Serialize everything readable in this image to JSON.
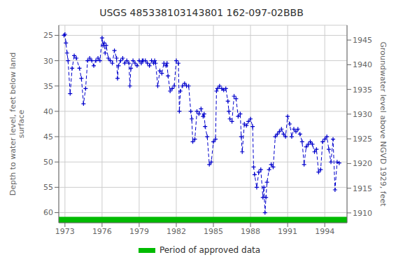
{
  "chart_data": {
    "type": "line",
    "title": "USGS 485338103143801 162-097-02BBB",
    "y_label": "Depth to water level, feet below land\nsurface",
    "y2_label": "Groundwater level above NGVD 1929, feet",
    "x": [
      1972.92,
      1973.0,
      1973.08,
      1973.17,
      1973.25,
      1973.42,
      1973.58,
      1973.75,
      1973.92,
      1974.17,
      1974.33,
      1974.5,
      1974.67,
      1974.83,
      1975.0,
      1975.17,
      1975.33,
      1975.5,
      1975.67,
      1975.83,
      1976.0,
      1976.08,
      1976.17,
      1976.25,
      1976.33,
      1976.5,
      1976.67,
      1976.83,
      1977.0,
      1977.17,
      1977.25,
      1977.33,
      1977.5,
      1977.67,
      1977.83,
      1978.0,
      1978.17,
      1978.25,
      1978.33,
      1978.5,
      1978.67,
      1978.83,
      1979.0,
      1979.17,
      1979.25,
      1979.33,
      1979.5,
      1979.67,
      1979.83,
      1980.0,
      1980.17,
      1980.25,
      1980.33,
      1980.5,
      1980.67,
      1980.83,
      1981.0,
      1981.17,
      1981.25,
      1981.33,
      1981.5,
      1981.67,
      1981.83,
      1982.0,
      1982.17,
      1982.25,
      1982.33,
      1982.5,
      1982.67,
      1982.83,
      1983.0,
      1983.17,
      1983.25,
      1983.33,
      1983.5,
      1983.67,
      1983.83,
      1984.0,
      1984.17,
      1984.25,
      1984.33,
      1984.5,
      1984.67,
      1984.83,
      1985.0,
      1985.17,
      1985.25,
      1985.33,
      1985.5,
      1985.67,
      1985.83,
      1986.0,
      1986.17,
      1986.25,
      1986.33,
      1986.5,
      1986.67,
      1986.83,
      1987.0,
      1987.17,
      1987.25,
      1987.33,
      1987.5,
      1987.67,
      1987.83,
      1988.0,
      1988.17,
      1988.25,
      1988.33,
      1988.5,
      1988.67,
      1988.83,
      1989.0,
      1989.08,
      1989.17,
      1989.25,
      1989.33,
      1989.5,
      1989.67,
      1989.83,
      1990.0,
      1990.17,
      1990.33,
      1990.5,
      1990.67,
      1990.83,
      1991.0,
      1991.17,
      1991.33,
      1991.5,
      1991.67,
      1991.83,
      1992.0,
      1992.17,
      1992.33,
      1992.5,
      1992.67,
      1992.83,
      1993.0,
      1993.17,
      1993.33,
      1993.5,
      1993.67,
      1993.83,
      1994.0,
      1994.17,
      1994.33,
      1994.5,
      1994.67,
      1994.83,
      1995.0,
      1995.17
    ],
    "series": [
      {
        "color": "#0000CC",
        "marker": "plus",
        "line_style": "dashed",
        "values": [
          25.0,
          24.8,
          26.5,
          28.5,
          30.0,
          36.5,
          31.5,
          29.0,
          29.5,
          31.5,
          33.5,
          38.5,
          35.5,
          30.0,
          29.5,
          30.0,
          31.0,
          30.0,
          29.5,
          30.0,
          25.5,
          27.0,
          26.5,
          28.5,
          27.0,
          29.5,
          30.0,
          30.5,
          28.0,
          29.5,
          33.5,
          31.0,
          30.0,
          29.5,
          30.5,
          30.0,
          30.5,
          35.0,
          31.5,
          30.0,
          30.5,
          31.0,
          30.0,
          30.5,
          30.0,
          30.0,
          30.0,
          30.5,
          31.0,
          30.0,
          30.5,
          30.0,
          30.5,
          35.0,
          32.0,
          32.5,
          30.5,
          31.0,
          30.5,
          33.0,
          36.0,
          35.5,
          35.0,
          30.0,
          30.5,
          40.0,
          36.0,
          35.0,
          34.5,
          35.0,
          35.0,
          40.0,
          41.5,
          46.0,
          45.5,
          40.0,
          40.5,
          39.5,
          41.0,
          40.5,
          43.0,
          45.0,
          50.5,
          50.0,
          46.0,
          45.5,
          36.0,
          35.5,
          35.0,
          35.5,
          35.8,
          35.5,
          38.0,
          40.0,
          41.5,
          42.0,
          37.0,
          37.5,
          41.0,
          40.5,
          45.0,
          48.0,
          42.5,
          42.8,
          42.0,
          41.5,
          43.0,
          51.0,
          52.5,
          55.0,
          52.0,
          51.5,
          57.0,
          55.0,
          60.0,
          57.0,
          54.0,
          51.5,
          50.5,
          51.0,
          45.0,
          44.5,
          44.0,
          43.5,
          44.5,
          45.0,
          41.0,
          42.5,
          45.0,
          43.5,
          44.0,
          43.5,
          44.5,
          46.0,
          50.5,
          47.0,
          46.5,
          46.0,
          46.5,
          48.0,
          47.5,
          52.0,
          51.5,
          46.0,
          45.5,
          45.0,
          47.5,
          50.0,
          45.5,
          55.5,
          50.0,
          50.2
        ]
      }
    ],
    "approved_period": {
      "name": "Period of approved data",
      "color": "#00bb00",
      "x": [
        1972.5,
        1995.8
      ]
    },
    "xlim": [
      1972.5,
      1995.8
    ],
    "xticks": [
      1973,
      1976,
      1979,
      1982,
      1985,
      1988,
      1991,
      1994
    ],
    "ylim": [
      62,
      23
    ],
    "yticks": [
      25,
      30,
      35,
      40,
      45,
      50,
      55,
      60
    ],
    "y2lim": [
      1908,
      1948
    ],
    "y2ticks": [
      1910,
      1915,
      1920,
      1925,
      1930,
      1935,
      1940,
      1945
    ],
    "grid": true,
    "legend": "bottom"
  }
}
